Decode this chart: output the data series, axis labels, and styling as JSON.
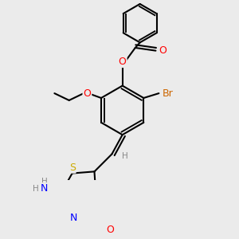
{
  "bg_color": "#ebebeb",
  "bond_color": "#000000",
  "bond_width": 1.5,
  "atom_colors": {
    "O": "#ff0000",
    "N": "#0000ff",
    "S": "#ccaa00",
    "Br": "#cc6600",
    "C": "#000000",
    "H": "#888888"
  },
  "font_size": 9.0,
  "fig_size": [
    3.0,
    3.0
  ],
  "dpi": 100
}
